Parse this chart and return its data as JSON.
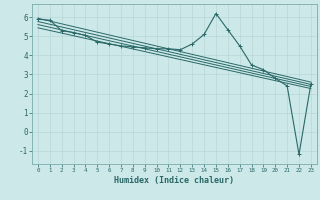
{
  "title": "",
  "xlabel": "Humidex (Indice chaleur)",
  "bg_color": "#cce8e8",
  "line_color": "#2a6868",
  "grid_color": "#b8d8d8",
  "spine_color": "#7aabab",
  "xlim": [
    -0.5,
    23.5
  ],
  "ylim": [
    -1.7,
    6.7
  ],
  "xticks": [
    0,
    1,
    2,
    3,
    4,
    5,
    6,
    7,
    8,
    9,
    10,
    11,
    12,
    13,
    14,
    15,
    16,
    17,
    18,
    19,
    20,
    21,
    22,
    23
  ],
  "yticks": [
    -1,
    0,
    1,
    2,
    3,
    4,
    5,
    6
  ],
  "main_y": [
    5.9,
    5.85,
    5.3,
    5.2,
    5.05,
    4.7,
    4.6,
    4.5,
    4.45,
    4.4,
    4.35,
    4.35,
    4.3,
    4.6,
    5.1,
    6.2,
    5.35,
    4.5,
    3.5,
    3.25,
    2.8,
    2.4,
    -1.2,
    2.5
  ],
  "trend_lines": [
    [
      5.95,
      2.6
    ],
    [
      5.78,
      2.48
    ],
    [
      5.62,
      2.37
    ],
    [
      5.45,
      2.26
    ]
  ]
}
